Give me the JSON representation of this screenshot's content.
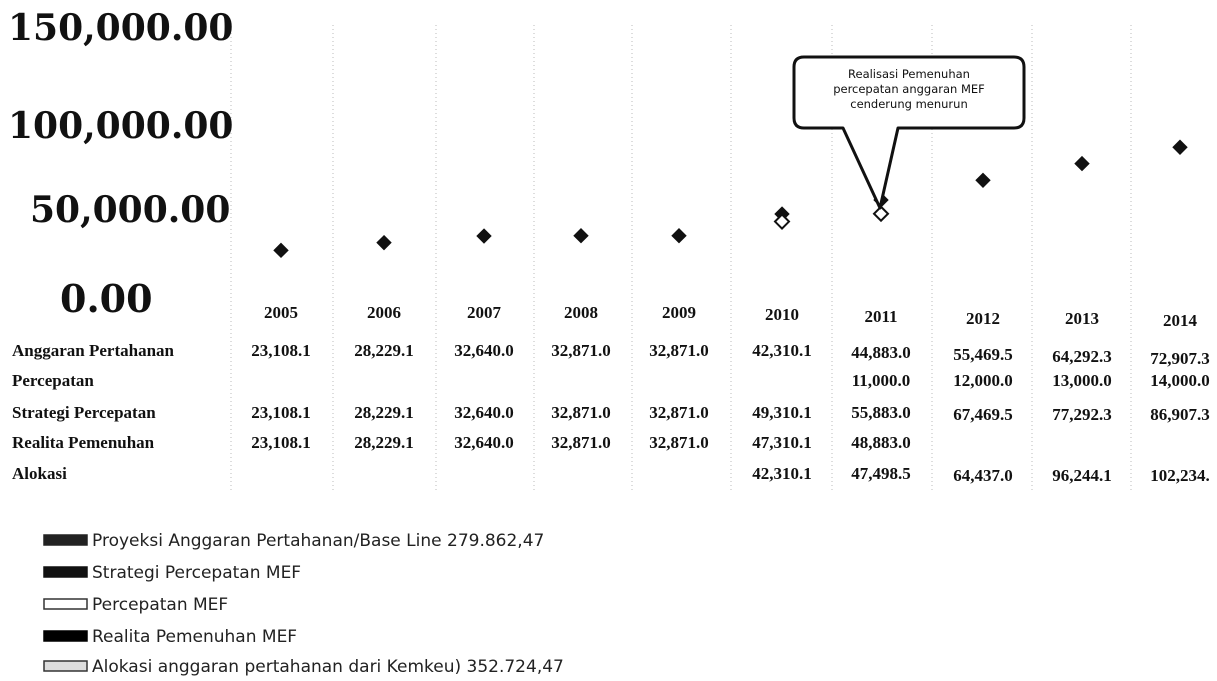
{
  "chart_data": {
    "type": "scatter",
    "y_tick_labels": [
      "150,000.00",
      "100,000.00",
      "50,000.00",
      "0.00"
    ],
    "ylim": [
      0,
      150000
    ],
    "x": [
      "2005",
      "2006",
      "2007",
      "2008",
      "2009",
      "2010",
      "2011",
      "2012",
      "2013",
      "2014"
    ],
    "table": {
      "rows": [
        {
          "label": "Anggaran Pertahanan",
          "cells": [
            "23,108.1",
            "28,229.1",
            "32,640.0",
            "32,871.0",
            "32,871.0",
            "42,310.1",
            "44,883.0",
            "55,469.5",
            "64,292.3",
            "72,907.3"
          ]
        },
        {
          "label": "Percepatan",
          "cells": [
            "",
            "",
            "",
            "",
            "",
            "",
            "11,000.0",
            "12,000.0",
            "13,000.0",
            "14,000.0"
          ]
        },
        {
          "label": "Strategi Percepatan",
          "cells": [
            "23,108.1",
            "28,229.1",
            "32,640.0",
            "32,871.0",
            "32,871.0",
            "49,310.1",
            "55,883.0",
            "67,469.5",
            "77,292.3",
            "86,907.3"
          ]
        },
        {
          "label": "Realita Pemenuhan",
          "cells": [
            "23,108.1",
            "28,229.1",
            "32,640.0",
            "32,871.0",
            "32,871.0",
            "47,310.1",
            "48,883.0",
            "",
            "",
            ""
          ]
        },
        {
          "label": "Alokasi",
          "cells": [
            "",
            "",
            "",
            "",
            "",
            "42,310.1",
            "47,498.5",
            "64,437.0",
            "96,244.1",
            "102,234."
          ]
        }
      ]
    },
    "points": [
      {
        "x": "2005",
        "y": 23108.1
      },
      {
        "x": "2006",
        "y": 28229.1
      },
      {
        "x": "2007",
        "y": 32640.0
      },
      {
        "x": "2008",
        "y": 32871.0
      },
      {
        "x": "2009",
        "y": 32871.0
      },
      {
        "x": "2010",
        "y": 47310.1
      },
      {
        "x": "2010",
        "y": 42310.1
      },
      {
        "x": "2011",
        "y": 55883.0
      },
      {
        "x": "2011",
        "y": 47498.5
      },
      {
        "x": "2012",
        "y": 67469.5
      },
      {
        "x": "2013",
        "y": 77292.3
      },
      {
        "x": "2014",
        "y": 86907.3
      }
    ],
    "annotation": "Realisasi Pemenuhan percepatan anggaran MEF cenderung menurun",
    "legend": [
      "Proyeksi Anggaran Pertahanan/Base Line 279.862,47",
      "Strategi Percepatan MEF",
      "Percepatan MEF",
      "Realita Pemenuhan MEF",
      "Alokasi anggaran pertahanan dari Kemkeu) 352.724,47"
    ]
  }
}
